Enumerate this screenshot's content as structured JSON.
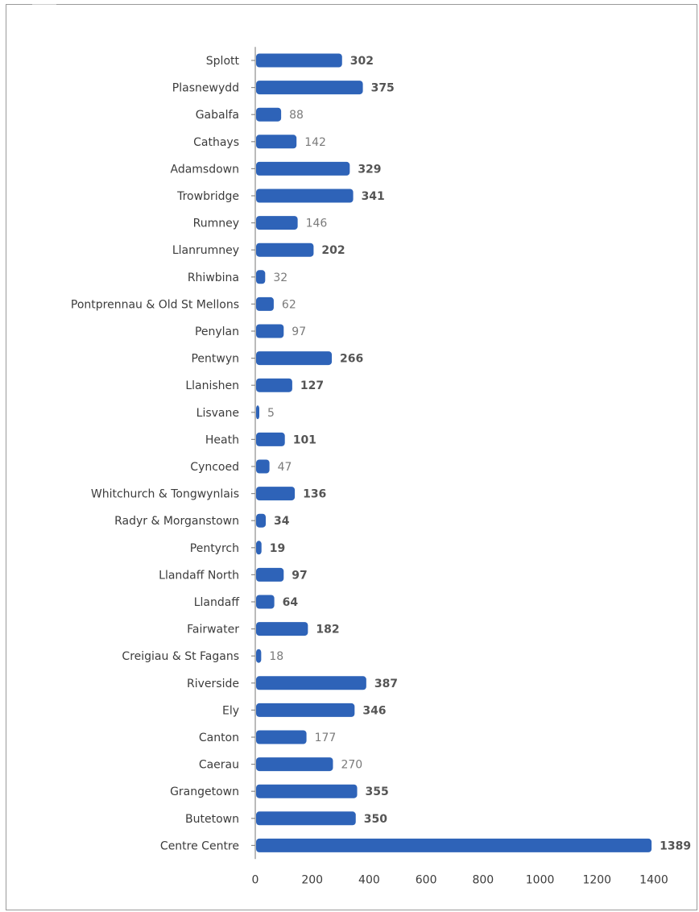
{
  "chart_data": {
    "type": "bar",
    "orientation": "horizontal",
    "title": "",
    "xlabel": "",
    "ylabel": "",
    "categories": [
      "Splott",
      "Plasnewydd",
      "Gabalfa",
      "Cathays",
      "Adamsdown",
      "Trowbridge",
      "Rumney",
      "Llanrumney",
      "Rhiwbina",
      "Pontprennau & Old St Mellons",
      "Penylan",
      "Pentwyn",
      "Llanishen",
      "Lisvane",
      "Heath",
      "Cyncoed",
      "Whitchurch & Tongwynlais",
      "Radyr & Morganstown",
      "Pentyrch",
      "Llandaff North",
      "Llandaff",
      "Fairwater",
      "Creigiau & St Fagans",
      "Riverside",
      "Ely",
      "Canton",
      "Caerau",
      "Grangetown",
      "Butetown",
      "Centre Centre"
    ],
    "values": [
      302,
      375,
      88,
      142,
      329,
      341,
      146,
      202,
      32,
      62,
      97,
      266,
      127,
      5,
      101,
      47,
      136,
      34,
      19,
      97,
      64,
      182,
      18,
      387,
      346,
      177,
      270,
      355,
      350,
      1389
    ],
    "light_value_labels": [
      false,
      false,
      true,
      true,
      false,
      false,
      true,
      false,
      true,
      true,
      true,
      false,
      false,
      true,
      false,
      true,
      false,
      false,
      false,
      false,
      false,
      false,
      true,
      false,
      false,
      true,
      true,
      false,
      false,
      false
    ],
    "xlim": [
      0,
      1400
    ],
    "x_ticks": [
      0,
      200,
      400,
      600,
      800,
      1000,
      1200,
      1400
    ],
    "x_tick_labels": [
      "0",
      "200",
      "400",
      "600",
      "800",
      "1000",
      "1200",
      "1400"
    ],
    "grid": false,
    "legend": "none",
    "bar_color": "#2e63b8"
  }
}
